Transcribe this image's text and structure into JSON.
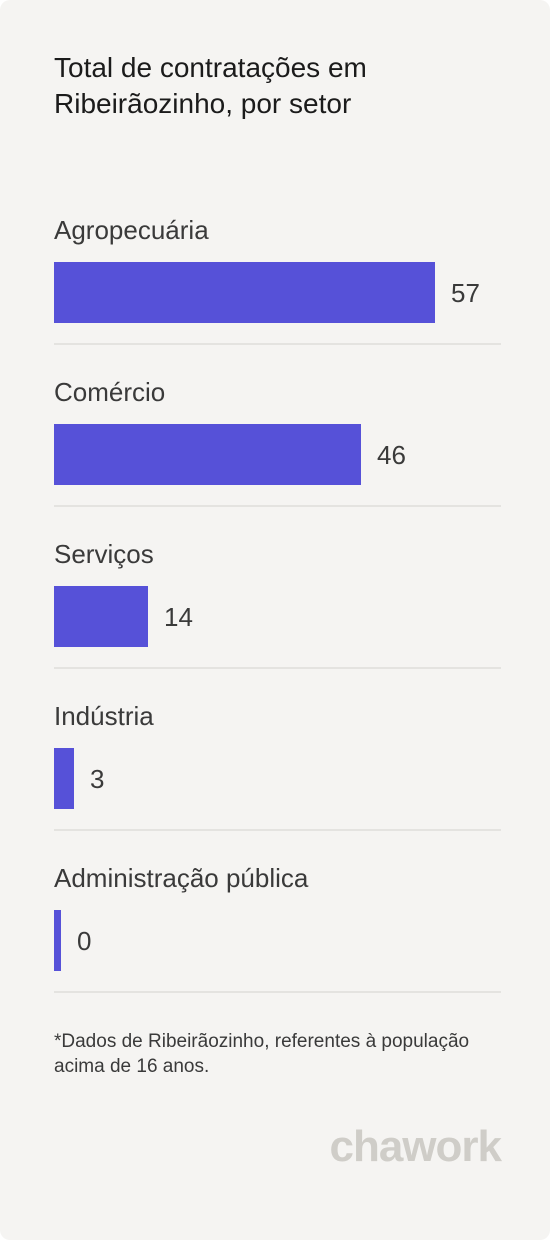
{
  "chart_data": {
    "type": "bar",
    "orientation": "horizontal",
    "title": "Total de contratações em Ribeirãozinho, por setor",
    "categories": [
      "Agropecuária",
      "Comércio",
      "Serviços",
      "Indústria",
      "Administração pública"
    ],
    "values": [
      57,
      46,
      14,
      3,
      0
    ],
    "value_labels": [
      "57",
      "46",
      "14",
      "3",
      "0"
    ],
    "bar_color": "#5651d8",
    "grid": false,
    "legend": "none"
  },
  "footnote": "*Dados de Ribeirãozinho, referentes à população acima de 16 anos.",
  "brand": {
    "name": "chawork",
    "color": "#cfcdc8"
  }
}
